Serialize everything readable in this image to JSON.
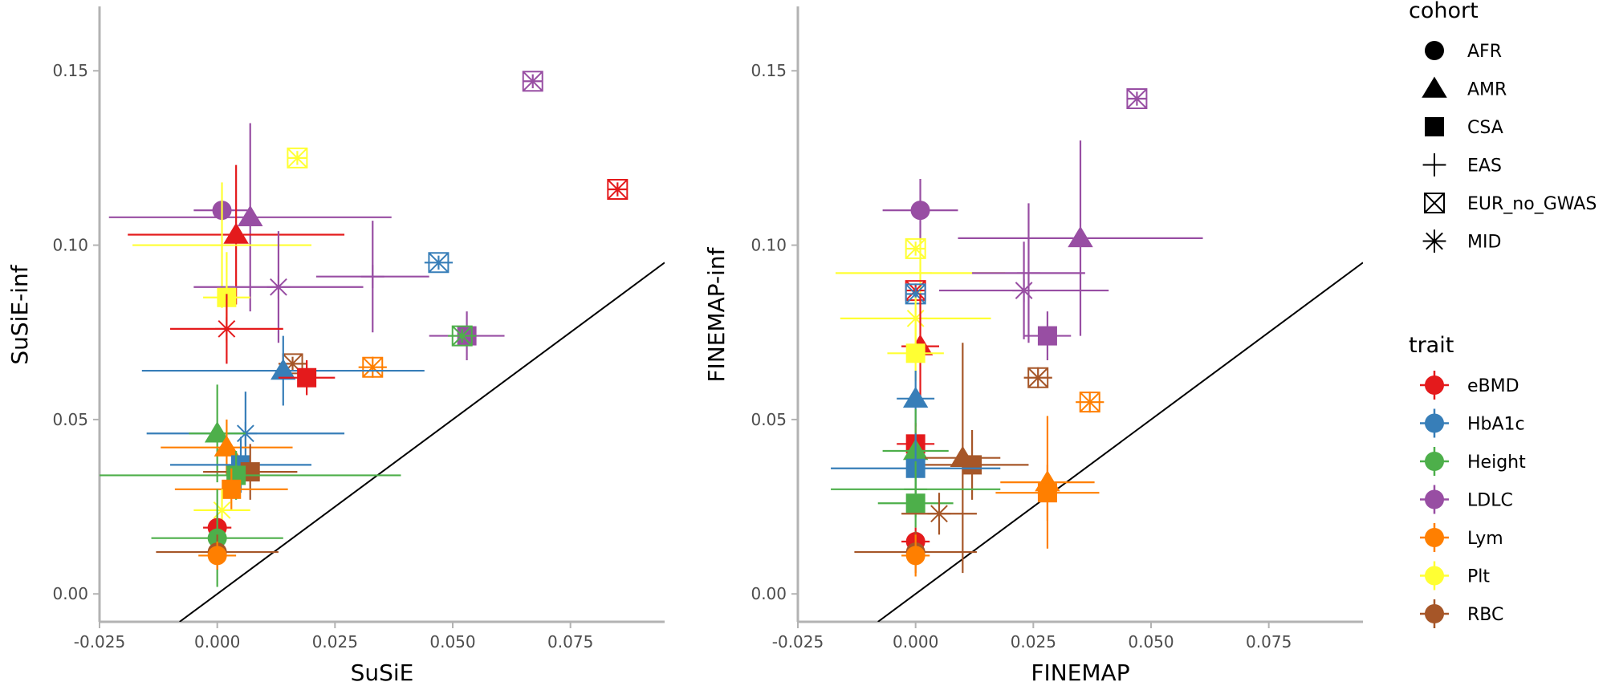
{
  "chart_data": [
    {
      "type": "scatter",
      "title": "",
      "xlabel": "SuSiE",
      "ylabel": "SuSiE-inf",
      "xlim": [
        -0.025,
        0.095
      ],
      "ylim": [
        -0.008,
        0.168
      ],
      "xticks": [
        -0.025,
        0.0,
        0.025,
        0.05,
        0.075
      ],
      "xtick_labels": [
        "-0.025",
        "0.000",
        "0.025",
        "0.050",
        "0.075"
      ],
      "yticks": [
        0.0,
        0.05,
        0.1,
        0.15
      ],
      "ytick_labels": [
        "0.00",
        "0.05",
        "0.10",
        "0.15"
      ],
      "diagonal": true,
      "points": [
        {
          "trait": "LDLC",
          "cohort": "EUR_no_GWAS",
          "x": 0.067,
          "y": 0.147,
          "xerr": 0.002,
          "yerr": 0.002
        },
        {
          "trait": "eBMD",
          "cohort": "EUR_no_GWAS",
          "x": 0.085,
          "y": 0.116,
          "xerr": 0.002,
          "yerr": 0.002
        },
        {
          "trait": "Plt",
          "cohort": "EUR_no_GWAS",
          "x": 0.017,
          "y": 0.125,
          "xerr": 0.002,
          "yerr": 0.002
        },
        {
          "trait": "LDLC",
          "cohort": "AFR",
          "x": 0.001,
          "y": 0.11,
          "xerr": 0.006,
          "yerr": 0.003
        },
        {
          "trait": "LDLC",
          "cohort": "AMR",
          "x": 0.007,
          "y": 0.108,
          "xerr": 0.03,
          "yerr": 0.027
        },
        {
          "trait": "eBMD",
          "cohort": "AMR",
          "x": 0.004,
          "y": 0.103,
          "xerr": 0.023,
          "yerr": 0.02
        },
        {
          "trait": "Plt",
          "cohort": "EAS",
          "x": 0.001,
          "y": 0.1,
          "xerr": 0.019,
          "yerr": 0.018
        },
        {
          "trait": "LDLC",
          "cohort": "EAS",
          "x": 0.033,
          "y": 0.091,
          "xerr": 0.012,
          "yerr": 0.016
        },
        {
          "trait": "HbA1c",
          "cohort": "EUR_no_GWAS",
          "x": 0.047,
          "y": 0.095,
          "xerr": 0.003,
          "yerr": 0.002
        },
        {
          "trait": "LDLC",
          "cohort": "MID",
          "x": 0.013,
          "y": 0.088,
          "xerr": 0.018,
          "yerr": 0.016
        },
        {
          "trait": "Plt",
          "cohort": "CSA",
          "x": 0.002,
          "y": 0.085,
          "xerr": 0.005,
          "yerr": 0.013
        },
        {
          "trait": "eBMD",
          "cohort": "MID",
          "x": 0.002,
          "y": 0.076,
          "xerr": 0.012,
          "yerr": 0.01
        },
        {
          "trait": "LDLC",
          "cohort": "CSA",
          "x": 0.053,
          "y": 0.074,
          "xerr": 0.008,
          "yerr": 0.007
        },
        {
          "trait": "Height",
          "cohort": "EUR_no_GWAS",
          "x": 0.052,
          "y": 0.074,
          "xerr": 0.003,
          "yerr": 0.002
        },
        {
          "trait": "Lym",
          "cohort": "EUR_no_GWAS",
          "x": 0.033,
          "y": 0.065,
          "xerr": 0.003,
          "yerr": 0.003
        },
        {
          "trait": "RBC",
          "cohort": "EUR_no_GWAS",
          "x": 0.016,
          "y": 0.066,
          "xerr": 0.003,
          "yerr": 0.002
        },
        {
          "trait": "HbA1c",
          "cohort": "AMR",
          "x": 0.014,
          "y": 0.064,
          "xerr": 0.03,
          "yerr": 0.01
        },
        {
          "trait": "eBMD",
          "cohort": "CSA",
          "x": 0.019,
          "y": 0.062,
          "xerr": 0.006,
          "yerr": 0.005
        },
        {
          "trait": "HbA1c",
          "cohort": "MID",
          "x": 0.006,
          "y": 0.046,
          "xerr": 0.021,
          "yerr": 0.012
        },
        {
          "trait": "Height",
          "cohort": "AMR",
          "x": 0.0,
          "y": 0.046,
          "xerr": 0.006,
          "yerr": 0.014
        },
        {
          "trait": "Lym",
          "cohort": "AMR",
          "x": 0.002,
          "y": 0.042,
          "xerr": 0.014,
          "yerr": 0.008
        },
        {
          "trait": "HbA1c",
          "cohort": "CSA",
          "x": 0.005,
          "y": 0.037,
          "xerr": 0.015,
          "yerr": 0.008
        },
        {
          "trait": "RBC",
          "cohort": "CSA",
          "x": 0.007,
          "y": 0.035,
          "xerr": 0.01,
          "yerr": 0.008
        },
        {
          "trait": "Height",
          "cohort": "CSA",
          "x": 0.004,
          "y": 0.034,
          "xerr": 0.035,
          "yerr": 0.007
        },
        {
          "trait": "Lym",
          "cohort": "CSA",
          "x": 0.003,
          "y": 0.03,
          "xerr": 0.012,
          "yerr": 0.006
        },
        {
          "trait": "Plt",
          "cohort": "MID",
          "x": 0.001,
          "y": 0.024,
          "xerr": 0.006,
          "yerr": 0.006
        },
        {
          "trait": "eBMD",
          "cohort": "AFR",
          "x": 0.0,
          "y": 0.019,
          "xerr": 0.003,
          "yerr": 0.004
        },
        {
          "trait": "Height",
          "cohort": "AFR",
          "x": 0.0,
          "y": 0.016,
          "xerr": 0.014,
          "yerr": 0.014
        },
        {
          "trait": "RBC",
          "cohort": "AFR",
          "x": 0.0,
          "y": 0.012,
          "xerr": 0.013,
          "yerr": 0.005
        },
        {
          "trait": "Lym",
          "cohort": "AFR",
          "x": 0.0,
          "y": 0.011,
          "xerr": 0.004,
          "yerr": 0.004
        }
      ]
    },
    {
      "type": "scatter",
      "title": "",
      "xlabel": "FINEMAP",
      "ylabel": "FINEMAP-inf",
      "xlim": [
        -0.025,
        0.095
      ],
      "ylim": [
        -0.008,
        0.168
      ],
      "xticks": [
        -0.025,
        0.0,
        0.025,
        0.05,
        0.075
      ],
      "xtick_labels": [
        "-0.025",
        "0.000",
        "0.025",
        "0.050",
        "0.075"
      ],
      "yticks": [
        0.0,
        0.05,
        0.1,
        0.15
      ],
      "ytick_labels": [
        "0.00",
        "0.05",
        "0.10",
        "0.15"
      ],
      "diagonal": true,
      "points": [
        {
          "trait": "LDLC",
          "cohort": "EUR_no_GWAS",
          "x": 0.047,
          "y": 0.142,
          "xerr": 0.002,
          "yerr": 0.002
        },
        {
          "trait": "LDLC",
          "cohort": "AFR",
          "x": 0.001,
          "y": 0.11,
          "xerr": 0.008,
          "yerr": 0.009
        },
        {
          "trait": "LDLC",
          "cohort": "AMR",
          "x": 0.035,
          "y": 0.102,
          "xerr": 0.026,
          "yerr": 0.028
        },
        {
          "trait": "Plt",
          "cohort": "EUR_no_GWAS",
          "x": 0.0,
          "y": 0.099,
          "xerr": 0.002,
          "yerr": 0.002
        },
        {
          "trait": "Plt",
          "cohort": "EAS",
          "x": 0.001,
          "y": 0.092,
          "xerr": 0.018,
          "yerr": 0.01
        },
        {
          "trait": "LDLC",
          "cohort": "EAS",
          "x": 0.024,
          "y": 0.092,
          "xerr": 0.012,
          "yerr": 0.02
        },
        {
          "trait": "LDLC",
          "cohort": "MID",
          "x": 0.023,
          "y": 0.087,
          "xerr": 0.018,
          "yerr": 0.014
        },
        {
          "trait": "eBMD",
          "cohort": "EUR_no_GWAS",
          "x": 0.0,
          "y": 0.087,
          "xerr": 0.002,
          "yerr": 0.002
        },
        {
          "trait": "HbA1c",
          "cohort": "EUR_no_GWAS",
          "x": 0.0,
          "y": 0.086,
          "xerr": 0.002,
          "yerr": 0.002
        },
        {
          "trait": "Plt",
          "cohort": "MID",
          "x": 0.0,
          "y": 0.079,
          "xerr": 0.016,
          "yerr": 0.006
        },
        {
          "trait": "LDLC",
          "cohort": "CSA",
          "x": 0.028,
          "y": 0.074,
          "xerr": 0.005,
          "yerr": 0.007
        },
        {
          "trait": "eBMD",
          "cohort": "AMR",
          "x": 0.001,
          "y": 0.071,
          "xerr": 0.004,
          "yerr": 0.015
        },
        {
          "trait": "Plt",
          "cohort": "CSA",
          "x": 0.0,
          "y": 0.069,
          "xerr": 0.006,
          "yerr": 0.008
        },
        {
          "trait": "RBC",
          "cohort": "EUR_no_GWAS",
          "x": 0.026,
          "y": 0.062,
          "xerr": 0.003,
          "yerr": 0.003
        },
        {
          "trait": "HbA1c",
          "cohort": "AMR",
          "x": 0.0,
          "y": 0.056,
          "xerr": 0.004,
          "yerr": 0.008
        },
        {
          "trait": "Lym",
          "cohort": "EUR_no_GWAS",
          "x": 0.037,
          "y": 0.055,
          "xerr": 0.003,
          "yerr": 0.003
        },
        {
          "trait": "eBMD",
          "cohort": "CSA",
          "x": 0.0,
          "y": 0.043,
          "xerr": 0.004,
          "yerr": 0.006
        },
        {
          "trait": "Height",
          "cohort": "AMR",
          "x": 0.0,
          "y": 0.041,
          "xerr": 0.007,
          "yerr": 0.012
        },
        {
          "trait": "RBC",
          "cohort": "AMR",
          "x": 0.01,
          "y": 0.039,
          "xerr": 0.008,
          "yerr": 0.033
        },
        {
          "trait": "RBC",
          "cohort": "CSA",
          "x": 0.012,
          "y": 0.037,
          "xerr": 0.012,
          "yerr": 0.01
        },
        {
          "trait": "HbA1c",
          "cohort": "CSA",
          "x": 0.0,
          "y": 0.036,
          "xerr": 0.018,
          "yerr": 0.01
        },
        {
          "trait": "Lym",
          "cohort": "AMR",
          "x": 0.028,
          "y": 0.032,
          "xerr": 0.01,
          "yerr": 0.019
        },
        {
          "trait": "Lym",
          "cohort": "CSA",
          "x": 0.028,
          "y": 0.029,
          "xerr": 0.011,
          "yerr": 0.008
        },
        {
          "trait": "Height",
          "cohort": "EAS",
          "x": 0.0,
          "y": 0.03,
          "xerr": 0.018,
          "yerr": 0.008
        },
        {
          "trait": "Height",
          "cohort": "CSA",
          "x": 0.0,
          "y": 0.026,
          "xerr": 0.008,
          "yerr": 0.007
        },
        {
          "trait": "RBC",
          "cohort": "MID",
          "x": 0.005,
          "y": 0.023,
          "xerr": 0.008,
          "yerr": 0.006
        },
        {
          "trait": "eBMD",
          "cohort": "AFR",
          "x": 0.0,
          "y": 0.015,
          "xerr": 0.003,
          "yerr": 0.004
        },
        {
          "trait": "RBC",
          "cohort": "AFR",
          "x": 0.0,
          "y": 0.012,
          "xerr": 0.013,
          "yerr": 0.006
        },
        {
          "trait": "Lym",
          "cohort": "AFR",
          "x": 0.0,
          "y": 0.011,
          "xerr": 0.003,
          "yerr": 0.006
        }
      ]
    }
  ],
  "legend": {
    "cohort_title": "cohort",
    "cohorts": [
      "AFR",
      "AMR",
      "CSA",
      "EAS",
      "EUR_no_GWAS",
      "MID"
    ],
    "trait_title": "trait",
    "traits": [
      "eBMD",
      "HbA1c",
      "Height",
      "LDLC",
      "Lym",
      "Plt",
      "RBC"
    ],
    "trait_colors": {
      "eBMD": "#E41A1C",
      "HbA1c": "#377EB8",
      "Height": "#4DAF4A",
      "LDLC": "#984EA3",
      "Lym": "#FF7F00",
      "Plt": "#FFFF33",
      "RBC": "#A65628"
    },
    "placement": "right"
  }
}
